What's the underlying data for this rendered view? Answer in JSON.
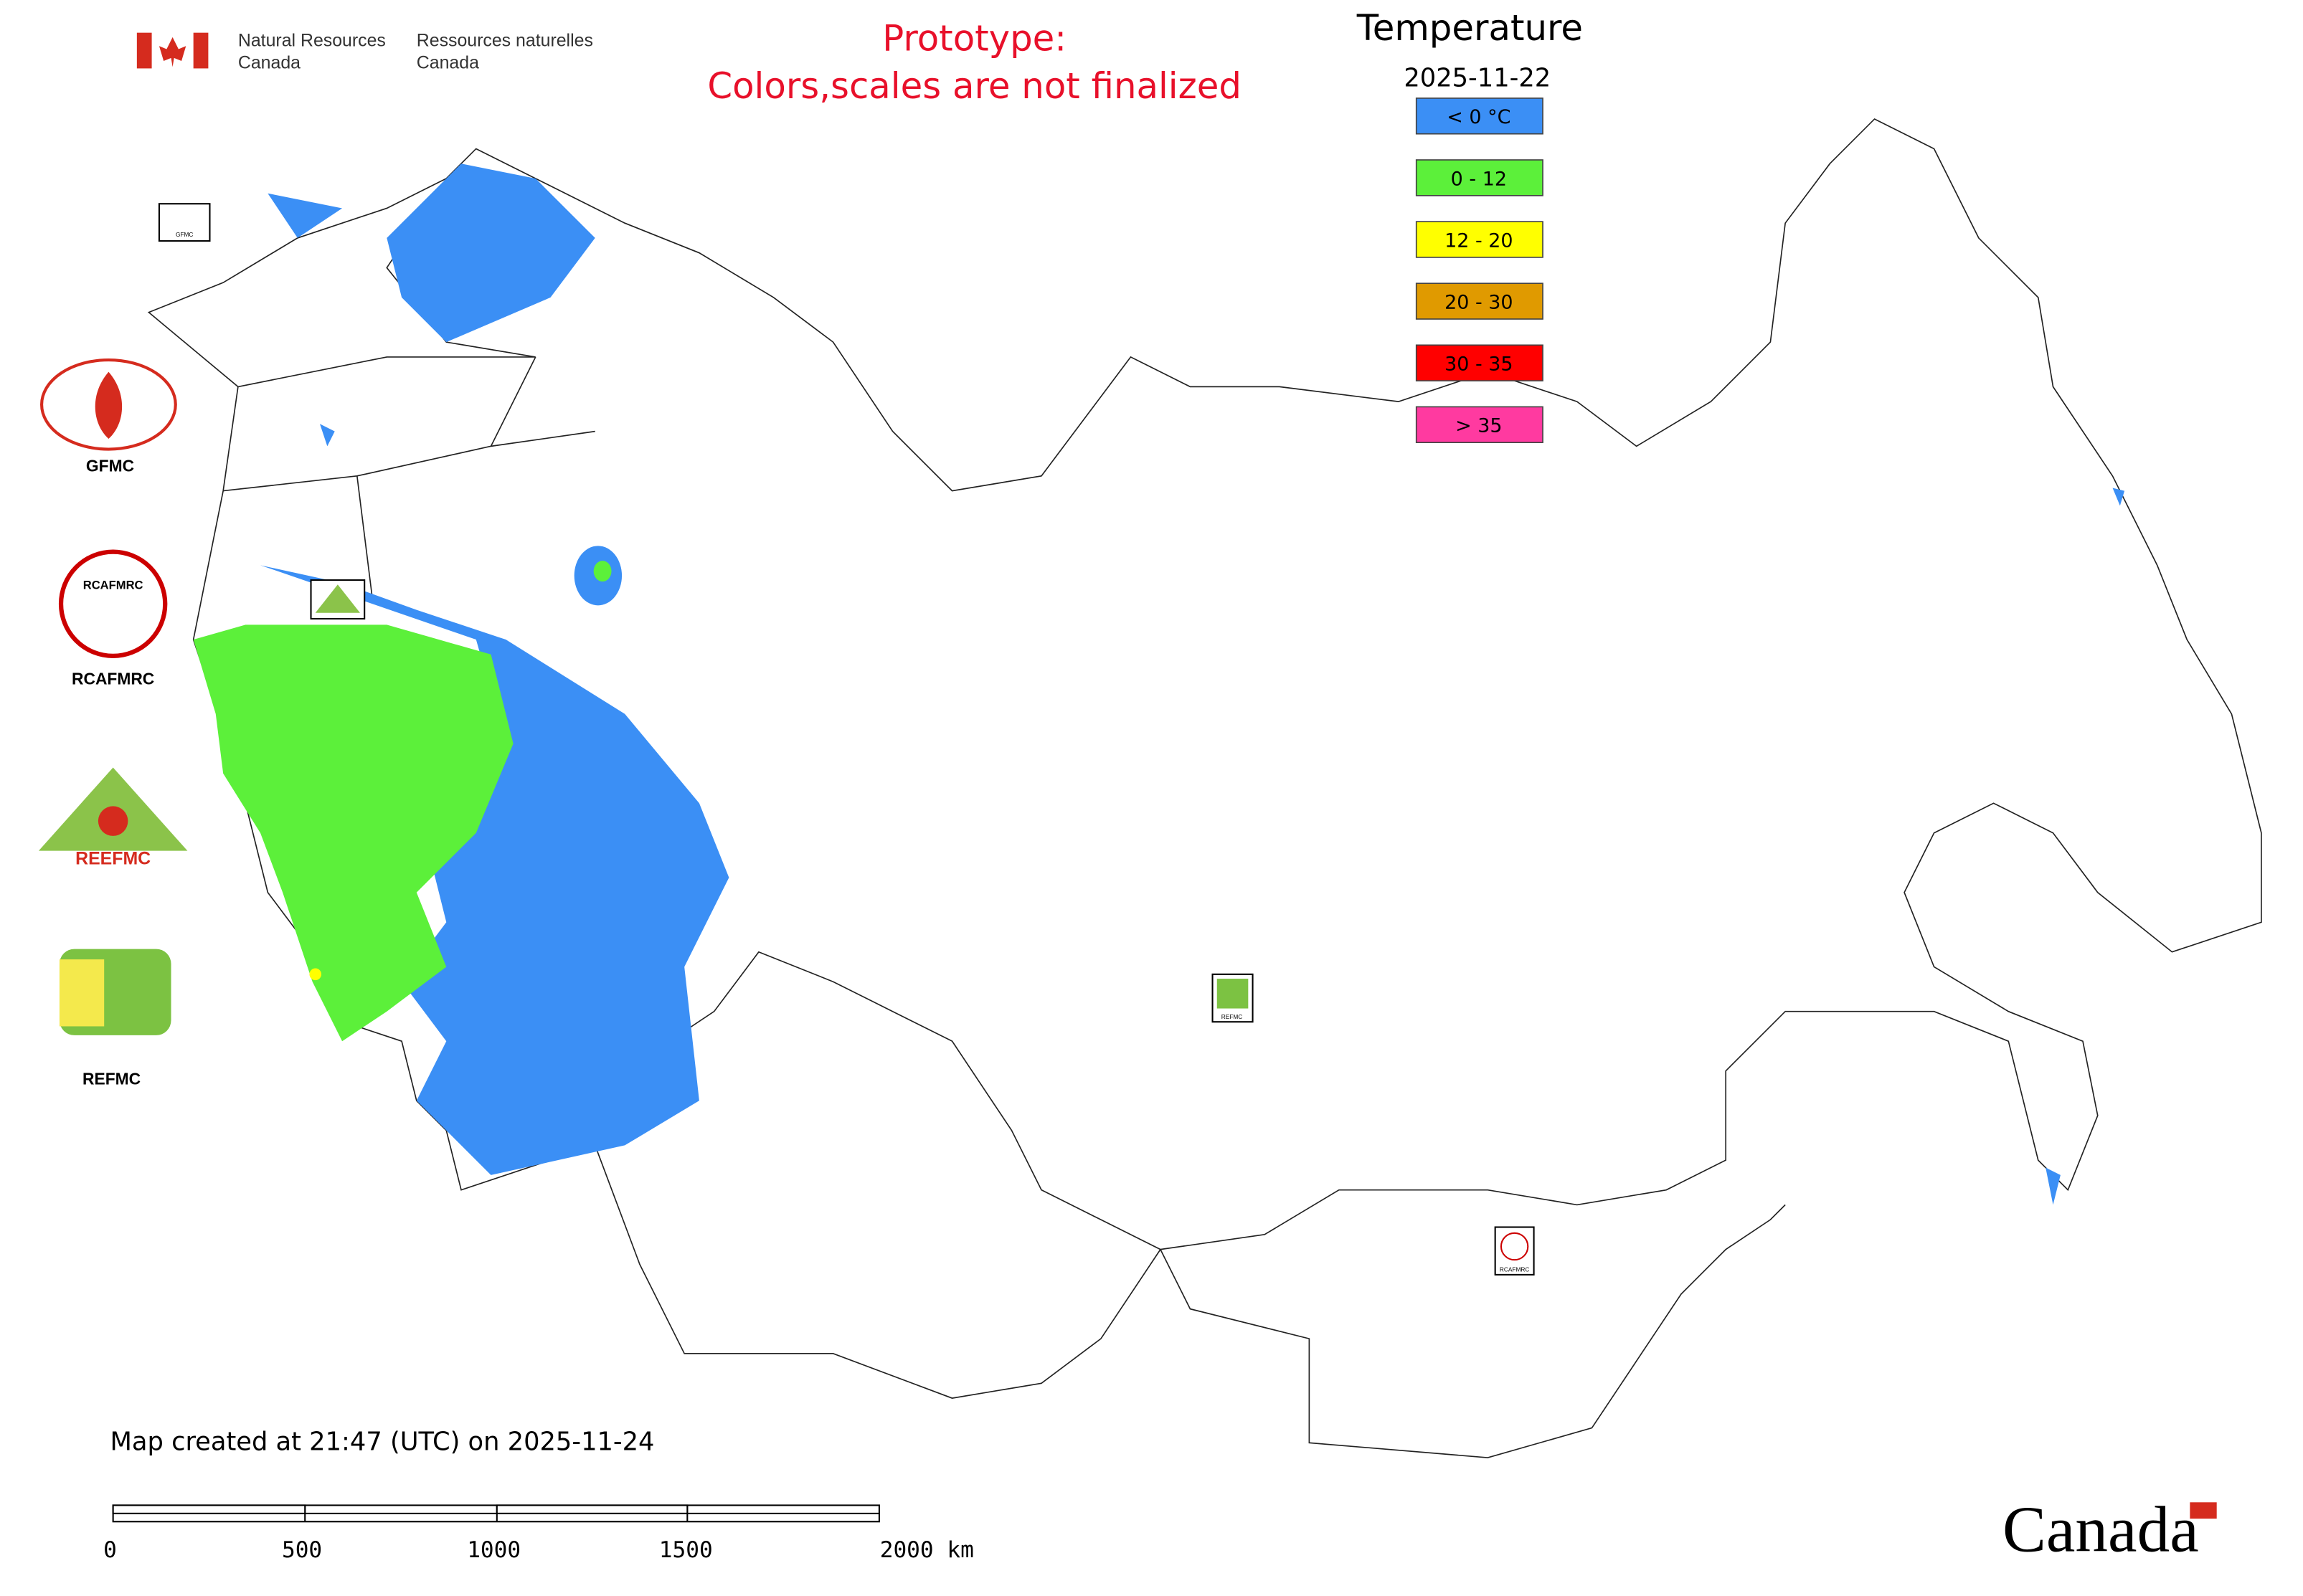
{
  "header": {
    "agency_en": [
      "Natural Resources",
      "Canada"
    ],
    "agency_fr": [
      "Ressources naturelles",
      "Canada"
    ],
    "notice": [
      "Prototype:",
      "Colors,scales are not finalized"
    ]
  },
  "legend": {
    "title": "Temperature",
    "date": "2025-11-22",
    "items": [
      {
        "label": "< 0 °C",
        "color": "#3b8ff5"
      },
      {
        "label": "0 - 12",
        "color": "#5cf03a"
      },
      {
        "label": "12 - 20",
        "color": "#ffff00"
      },
      {
        "label": "20 - 30",
        "color": "#e09a00"
      },
      {
        "label": "30 - 35",
        "color": "#ff0000"
      },
      {
        "label": "> 35",
        "color": "#ff3aa0"
      }
    ]
  },
  "logos": {
    "gfmc": "GFMC",
    "rcafmrc": "RCAFMRC",
    "reefmc": "REEFMC",
    "refmc": "REFMC"
  },
  "footer": {
    "created": "Map created at 21:47 (UTC) on 2025-11-24",
    "scale_labels": [
      "0",
      "500",
      "1000",
      "1500",
      "2000 km"
    ],
    "wordmark": "Canada"
  }
}
